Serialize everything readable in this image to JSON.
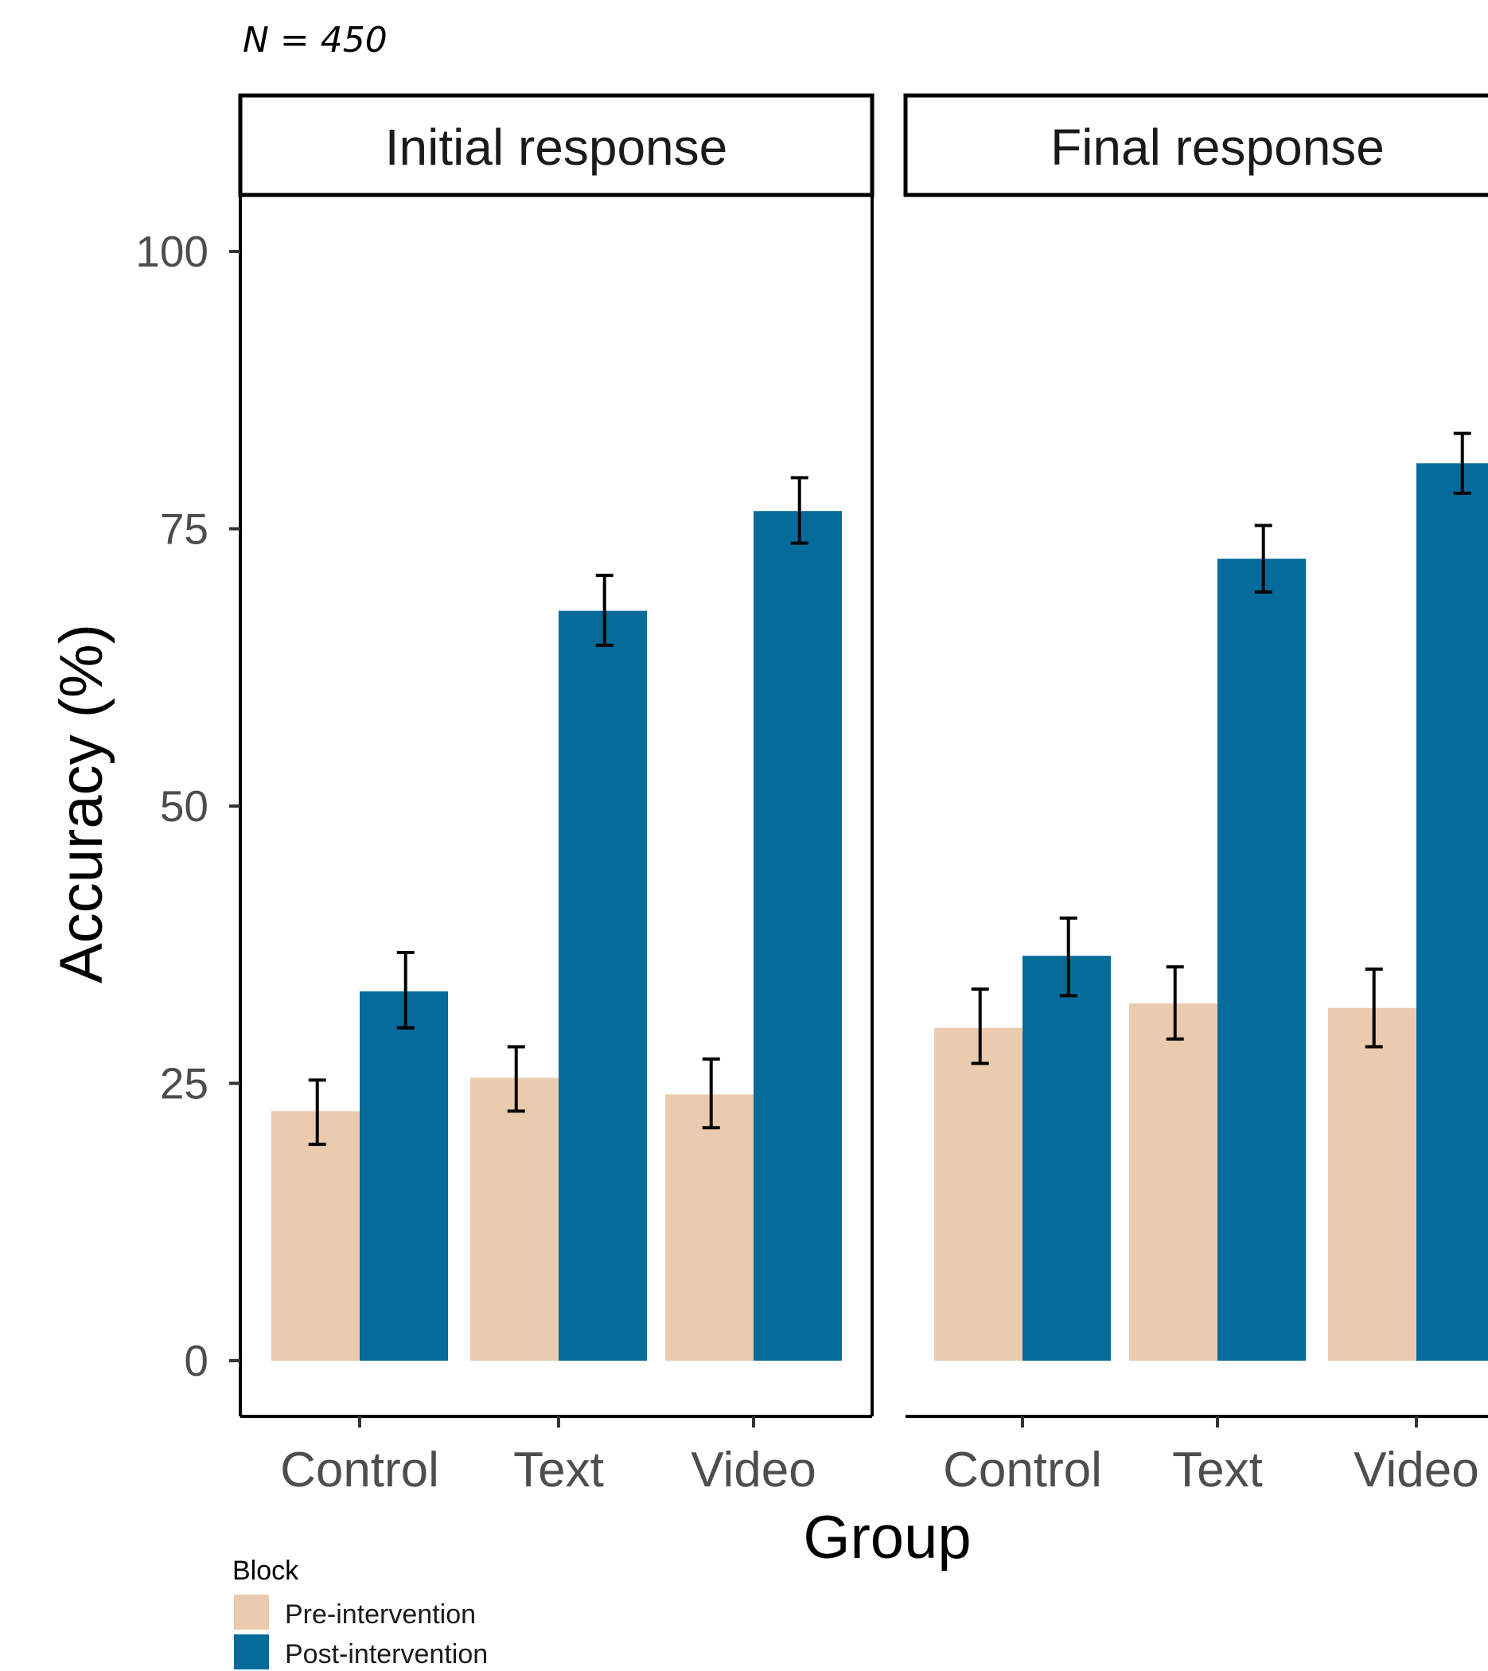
{
  "header": {
    "n_label": "N = 450"
  },
  "chart_data": {
    "type": "bar",
    "facets": [
      "Initial response",
      "Final response"
    ],
    "categories": [
      "Control",
      "Text",
      "Video"
    ],
    "series": [
      {
        "name": "Pre-intervention",
        "color": "#EACBAE",
        "values": {
          "Initial response": [
            22.5,
            25.5,
            24.0
          ],
          "Final response": [
            30.0,
            32.2,
            31.8
          ]
        },
        "error": {
          "Initial response": [
            [
              19.5,
              25.3
            ],
            [
              22.5,
              28.3
            ],
            [
              21.0,
              27.2
            ]
          ],
          "Final response": [
            [
              26.8,
              33.5
            ],
            [
              29.0,
              35.5
            ],
            [
              28.3,
              35.3
            ]
          ]
        }
      },
      {
        "name": "Post-intervention",
        "color": "#056B9A",
        "values": {
          "Initial response": [
            33.3,
            67.6,
            76.6
          ],
          "Final response": [
            36.5,
            72.3,
            80.9
          ]
        },
        "error": {
          "Initial response": [
            [
              30.0,
              36.8
            ],
            [
              64.5,
              70.8
            ],
            [
              73.7,
              79.6
            ]
          ],
          "Final response": [
            [
              32.9,
              39.9
            ],
            [
              69.3,
              75.3
            ],
            [
              78.2,
              83.6
            ]
          ]
        }
      }
    ],
    "xlabel": "Group",
    "ylabel": "Accuracy (%)",
    "ylim": [
      -5,
      105
    ],
    "yticks": [
      0,
      25,
      50,
      75,
      100
    ],
    "legend": {
      "title": "Block",
      "position": "bottom-left"
    },
    "grid": false
  }
}
